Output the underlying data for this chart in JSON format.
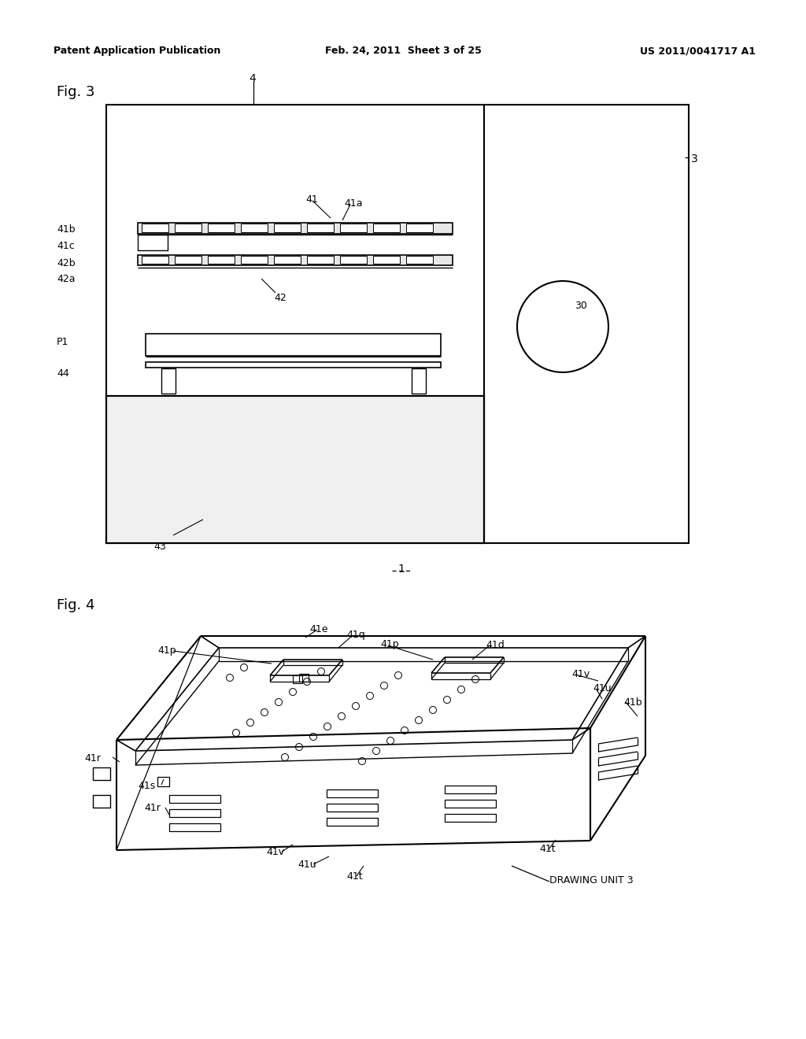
{
  "bg_color": "#ffffff",
  "line_color": "#000000",
  "fig_width": 10.24,
  "fig_height": 13.2,
  "header": {
    "left": "Patent Application Publication",
    "center": "Feb. 24, 2011  Sheet 3 of 25",
    "right": "US 2011/0041717 A1"
  }
}
